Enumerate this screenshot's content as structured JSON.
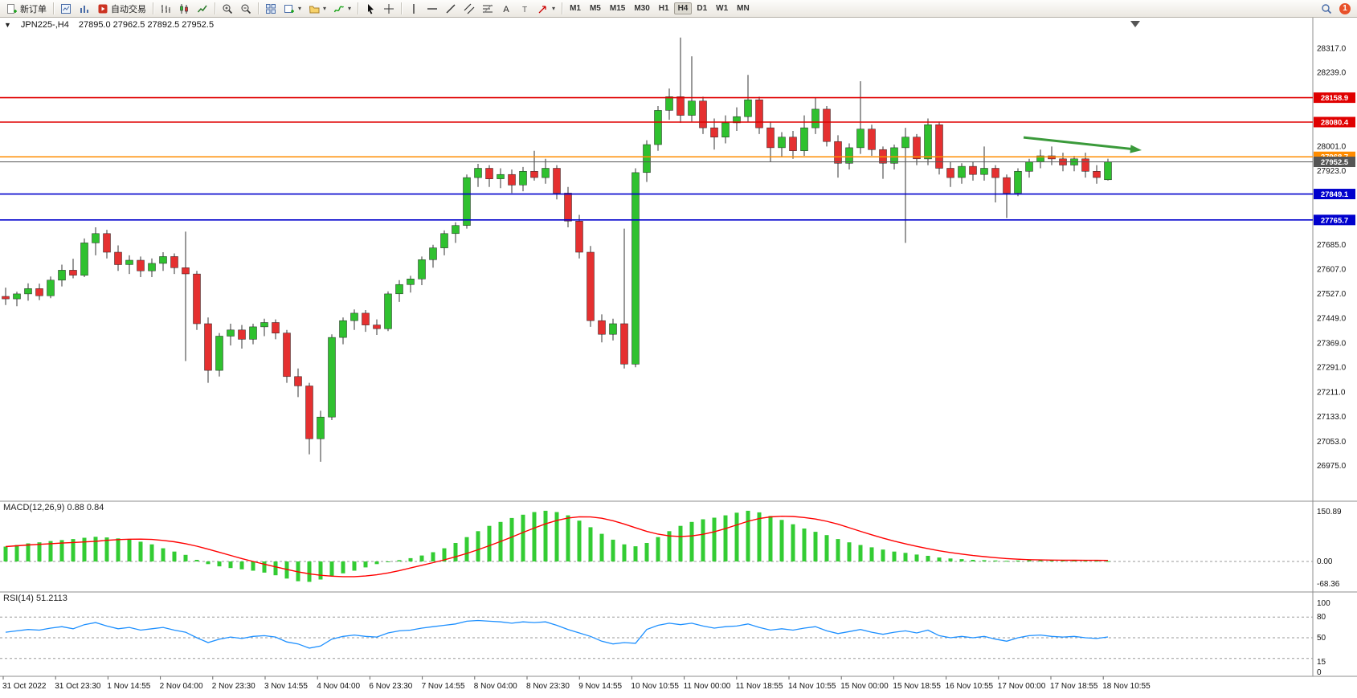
{
  "toolbar": {
    "new_order_label": "新订单",
    "auto_trading_label": "自动交易",
    "timeframes": [
      "M1",
      "M5",
      "M15",
      "M30",
      "H1",
      "H4",
      "D1",
      "W1",
      "MN"
    ],
    "active_timeframe": "H4",
    "notification_count": "1",
    "icon_names": [
      "new-order-icon",
      "charts-window-icon",
      "market-watch-icon",
      "autotrading-icon",
      "bars-chart-icon",
      "candles-chart-icon",
      "line-chart-icon",
      "zoom-in-icon",
      "zoom-out-icon",
      "tile-windows-icon",
      "new-chart-icon",
      "profiles-icon",
      "indicators-icon",
      "cursor-icon",
      "crosshair-icon",
      "vertical-line-icon",
      "horizontal-line-icon",
      "trendline-icon",
      "channel-icon",
      "fibonacci-icon",
      "text-icon",
      "label-icon",
      "arrows-icon",
      "search-icon",
      "notification-badge"
    ]
  },
  "chart_header": {
    "symbol_timeframe": "JPN225-,H4",
    "ohlc": "27895.0 27962.5 27892.5 27952.5"
  },
  "chart_data": {
    "type": "candlestick",
    "symbol": "JPN225-",
    "timeframe": "H4",
    "price_range": [
      26861,
      28416
    ],
    "colors": {
      "bull": "#2fc12f",
      "bear": "#e53030",
      "wick": "#333333",
      "level_red": "#e00000",
      "level_blue": "#0000cd",
      "level_orange": "#ff8c00",
      "bid": "#555555",
      "arrow": "#3a9a3a"
    },
    "axis_ticks": [
      "28317.0",
      "28239.0",
      "28001.0",
      "27923.0",
      "27685.0",
      "27607.0",
      "27527.0",
      "27449.0",
      "27369.0",
      "27291.0",
      "27211.0",
      "27133.0",
      "27053.0",
      "26975.0"
    ],
    "levels": [
      {
        "label": "28158.9",
        "value": 28158.9,
        "color_key": "level_red"
      },
      {
        "label": "28080.4",
        "value": 28080.4,
        "color_key": "level_red"
      },
      {
        "label": "27968.7",
        "value": 27968.7,
        "color_key": "level_orange"
      },
      {
        "label": "27849.1",
        "value": 27849.1,
        "color_key": "level_blue"
      },
      {
        "label": "27765.7",
        "value": 27765.7,
        "color_key": "level_blue"
      }
    ],
    "bid": {
      "label": "27952.5",
      "value": 27952.5
    },
    "trend_arrow": {
      "from_index": 90.5,
      "from_price": 28031,
      "to_index": 101,
      "to_price": 27990
    },
    "candles": [
      [
        27520,
        27548,
        27492,
        27512
      ],
      [
        27512,
        27535,
        27488,
        27528
      ],
      [
        27528,
        27562,
        27506,
        27545
      ],
      [
        27545,
        27561,
        27508,
        27522
      ],
      [
        27522,
        27584,
        27514,
        27572
      ],
      [
        27572,
        27622,
        27552,
        27604
      ],
      [
        27604,
        27641,
        27578,
        27588
      ],
      [
        27588,
        27706,
        27582,
        27692
      ],
      [
        27692,
        27742,
        27652,
        27722
      ],
      [
        27722,
        27734,
        27642,
        27662
      ],
      [
        27662,
        27684,
        27602,
        27622
      ],
      [
        27622,
        27652,
        27592,
        27636
      ],
      [
        27636,
        27648,
        27582,
        27602
      ],
      [
        27602,
        27642,
        27582,
        27626
      ],
      [
        27626,
        27662,
        27602,
        27648
      ],
      [
        27648,
        27658,
        27592,
        27612
      ],
      [
        27612,
        27728,
        27312,
        27592
      ],
      [
        27592,
        27602,
        27412,
        27432
      ],
      [
        27432,
        27452,
        27242,
        27282
      ],
      [
        27282,
        27402,
        27262,
        27392
      ],
      [
        27392,
        27432,
        27362,
        27412
      ],
      [
        27412,
        27428,
        27352,
        27382
      ],
      [
        27382,
        27432,
        27366,
        27422
      ],
      [
        27422,
        27448,
        27392,
        27436
      ],
      [
        27436,
        27446,
        27382,
        27402
      ],
      [
        27402,
        27412,
        27242,
        27262
      ],
      [
        27262,
        27288,
        27196,
        27232
      ],
      [
        27232,
        27242,
        27012,
        27062
      ],
      [
        27062,
        27152,
        26988,
        27132
      ],
      [
        27132,
        27398,
        27122,
        27388
      ],
      [
        27388,
        27452,
        27366,
        27442
      ],
      [
        27442,
        27478,
        27412,
        27466
      ],
      [
        27466,
        27476,
        27406,
        27428
      ],
      [
        27428,
        27446,
        27396,
        27416
      ],
      [
        27416,
        27536,
        27408,
        27528
      ],
      [
        27528,
        27572,
        27502,
        27558
      ],
      [
        27558,
        27586,
        27532,
        27576
      ],
      [
        27576,
        27648,
        27556,
        27638
      ],
      [
        27638,
        27686,
        27612,
        27676
      ],
      [
        27676,
        27732,
        27652,
        27722
      ],
      [
        27722,
        27758,
        27692,
        27748
      ],
      [
        27748,
        27912,
        27738,
        27902
      ],
      [
        27902,
        27946,
        27872,
        27932
      ],
      [
        27932,
        27942,
        27872,
        27898
      ],
      [
        27898,
        27932,
        27868,
        27912
      ],
      [
        27912,
        27928,
        27852,
        27878
      ],
      [
        27878,
        27936,
        27858,
        27922
      ],
      [
        27922,
        27988,
        27892,
        27902
      ],
      [
        27902,
        27962,
        27882,
        27932
      ],
      [
        27932,
        27942,
        27832,
        27852
      ],
      [
        27852,
        27872,
        27742,
        27762
      ],
      [
        27762,
        27782,
        27642,
        27662
      ],
      [
        27662,
        27682,
        27422,
        27442
      ],
      [
        27442,
        27462,
        27372,
        27398
      ],
      [
        27398,
        27448,
        27378,
        27432
      ],
      [
        27432,
        27738,
        27288,
        27302
      ],
      [
        27302,
        27932,
        27292,
        27918
      ],
      [
        27918,
        28022,
        27888,
        28008
      ],
      [
        28008,
        28132,
        27988,
        28118
      ],
      [
        28118,
        28188,
        28088,
        28162
      ],
      [
        28162,
        28352,
        28078,
        28102
      ],
      [
        28102,
        28292,
        28082,
        28148
      ],
      [
        28148,
        28162,
        28042,
        28062
      ],
      [
        28062,
        28092,
        27992,
        28032
      ],
      [
        28032,
        28102,
        28012,
        28078
      ],
      [
        28078,
        28128,
        28052,
        28098
      ],
      [
        28098,
        28232,
        28082,
        28152
      ],
      [
        28152,
        28162,
        28042,
        28062
      ],
      [
        28062,
        28082,
        27952,
        27998
      ],
      [
        27998,
        28048,
        27968,
        28032
      ],
      [
        28032,
        28052,
        27962,
        27988
      ],
      [
        27988,
        28102,
        27972,
        28062
      ],
      [
        28062,
        28158,
        28042,
        28122
      ],
      [
        28122,
        28132,
        28002,
        28018
      ],
      [
        28018,
        28038,
        27902,
        27948
      ],
      [
        27948,
        28012,
        27928,
        27998
      ],
      [
        27998,
        28212,
        27978,
        28058
      ],
      [
        28058,
        28072,
        27972,
        27992
      ],
      [
        27992,
        28002,
        27898,
        27948
      ],
      [
        27948,
        28008,
        27928,
        27998
      ],
      [
        27998,
        28062,
        27692,
        28032
      ],
      [
        28032,
        28042,
        27942,
        27962
      ],
      [
        27962,
        28092,
        27942,
        28072
      ],
      [
        28072,
        28082,
        27912,
        27932
      ],
      [
        27932,
        27952,
        27872,
        27902
      ],
      [
        27902,
        27948,
        27882,
        27938
      ],
      [
        27938,
        27952,
        27892,
        27912
      ],
      [
        27912,
        28002,
        27892,
        27932
      ],
      [
        27932,
        27942,
        27822,
        27902
      ],
      [
        27902,
        27912,
        27772,
        27852
      ],
      [
        27852,
        27932,
        27842,
        27922
      ],
      [
        27922,
        27962,
        27902,
        27952
      ],
      [
        27952,
        27992,
        27932,
        27972
      ],
      [
        27972,
        28002,
        27942,
        27962
      ],
      [
        27962,
        27982,
        27922,
        27942
      ],
      [
        27942,
        27972,
        27922,
        27962
      ],
      [
        27962,
        27982,
        27902,
        27922
      ],
      [
        27922,
        27942,
        27882,
        27902
      ],
      [
        27895,
        27962.5,
        27892.5,
        27952.5
      ]
    ]
  },
  "macd_data": {
    "type": "bar",
    "label": "MACD(12,26,9) 0.88 0.84",
    "axis_ticks": [
      "150.89",
      "0.00",
      "-68.36"
    ],
    "colors": {
      "histogram": "#33cc33",
      "signal": "#ff0000"
    },
    "histogram": [
      45,
      50,
      55,
      58,
      62,
      65,
      68,
      72,
      75,
      73,
      70,
      66,
      60,
      52,
      40,
      30,
      20,
      5,
      -8,
      -15,
      -20,
      -24,
      -28,
      -34,
      -42,
      -52,
      -60,
      -62,
      -55,
      -45,
      -36,
      -28,
      -18,
      -8,
      -2,
      4,
      10,
      18,
      28,
      40,
      56,
      74,
      92,
      108,
      120,
      132,
      142,
      150,
      154,
      150,
      140,
      124,
      104,
      84,
      66,
      52,
      46,
      56,
      74,
      92,
      108,
      120,
      128,
      133,
      140,
      148,
      154,
      149,
      138,
      126,
      113,
      100,
      90,
      80,
      68,
      58,
      50,
      43,
      36,
      30,
      26,
      21,
      17,
      12,
      9,
      7,
      5,
      4,
      3,
      2,
      3,
      4,
      5,
      5,
      4,
      3,
      2,
      2,
      1
    ],
    "signal_method": "SMA9 of histogram"
  },
  "rsi_data": {
    "type": "line",
    "label": "RSI(14) 51.2113",
    "axis_ticks": [
      "100",
      "80",
      "50",
      "15",
      "0"
    ],
    "levels": [
      80,
      50,
      20
    ],
    "color": "#1e90ff",
    "values": [
      58,
      60,
      62,
      61,
      64,
      66,
      63,
      69,
      72,
      67,
      63,
      65,
      61,
      63,
      65,
      61,
      58,
      50,
      43,
      48,
      51,
      49,
      52,
      53,
      51,
      44,
      41,
      35,
      38,
      48,
      52,
      54,
      52,
      51,
      57,
      60,
      61,
      64,
      66,
      68,
      70,
      74,
      75,
      74,
      73,
      71,
      73,
      72,
      73,
      68,
      62,
      57,
      52,
      45,
      41,
      43,
      42,
      62,
      68,
      71,
      69,
      71,
      67,
      64,
      66,
      67,
      70,
      65,
      61,
      63,
      61,
      64,
      66,
      60,
      56,
      59,
      62,
      58,
      55,
      58,
      60,
      57,
      61,
      53,
      50,
      52,
      50,
      52,
      48,
      45,
      50,
      53,
      54,
      52,
      51,
      52,
      50,
      49,
      51.21
    ]
  },
  "time_axis": [
    "31 Oct 2022",
    "31 Oct 23:30",
    "1 Nov 14:55",
    "2 Nov 04:00",
    "2 Nov 23:30",
    "3 Nov 14:55",
    "4 Nov 04:00",
    "6 Nov 23:30",
    "7 Nov 14:55",
    "8 Nov 04:00",
    "8 Nov 23:30",
    "9 Nov 14:55",
    "10 Nov 10:55",
    "11 Nov 00:00",
    "11 Nov 18:55",
    "14 Nov 10:55",
    "15 Nov 00:00",
    "15 Nov 18:55",
    "16 Nov 10:55",
    "17 Nov 00:00",
    "17 Nov 18:55",
    "18 Nov 10:55"
  ]
}
